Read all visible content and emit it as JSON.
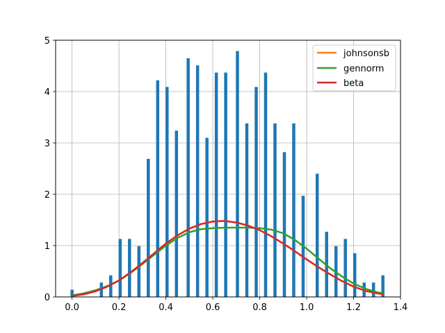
{
  "chart_data": {
    "type": "bar",
    "title": "",
    "xlabel": "",
    "ylabel": "",
    "xlim": [
      -0.07,
      1.4
    ],
    "ylim": [
      0,
      5
    ],
    "grid": true,
    "xticks": [
      0.0,
      0.2,
      0.4,
      0.6,
      0.8,
      1.0,
      1.2,
      1.4
    ],
    "xtick_labels": [
      "0.0",
      "0.2",
      "0.4",
      "0.6",
      "0.8",
      "1.0",
      "1.2",
      "1.4"
    ],
    "yticks": [
      0,
      1,
      2,
      3,
      4,
      5
    ],
    "ytick_labels": [
      "0",
      "1",
      "2",
      "3",
      "4",
      "5"
    ],
    "bar_color": "#1f77b4",
    "histogram": {
      "x": [
        0.0,
        0.125,
        0.165,
        0.205,
        0.245,
        0.285,
        0.325,
        0.365,
        0.405,
        0.445,
        0.495,
        0.535,
        0.575,
        0.615,
        0.655,
        0.705,
        0.745,
        0.785,
        0.825,
        0.865,
        0.905,
        0.945,
        0.985,
        1.045,
        1.085,
        1.125,
        1.165,
        1.205,
        1.245,
        1.285,
        1.325
      ],
      "values": [
        0.14,
        0.28,
        0.42,
        1.13,
        1.13,
        0.99,
        2.69,
        4.22,
        4.09,
        3.24,
        4.65,
        4.51,
        3.1,
        4.37,
        4.37,
        4.79,
        3.38,
        4.09,
        4.37,
        3.38,
        2.82,
        3.38,
        1.97,
        2.4,
        1.27,
        0.99,
        1.13,
        0.85,
        0.28,
        0.28,
        0.42
      ]
    },
    "series": [
      {
        "name": "johnsonsb",
        "color": "#ff7f0e",
        "x": [
          0.0,
          0.05,
          0.1,
          0.15,
          0.2,
          0.25,
          0.3,
          0.35,
          0.4,
          0.45,
          0.5,
          0.55,
          0.6,
          0.65,
          0.7,
          0.75,
          0.8,
          0.85,
          0.9,
          0.95,
          1.0,
          1.05,
          1.1,
          1.15,
          1.2,
          1.25,
          1.3,
          1.33
        ],
        "values": [
          0.02,
          0.05,
          0.11,
          0.2,
          0.32,
          0.48,
          0.66,
          0.85,
          1.04,
          1.2,
          1.33,
          1.42,
          1.47,
          1.48,
          1.45,
          1.39,
          1.3,
          1.18,
          1.04,
          0.89,
          0.73,
          0.58,
          0.44,
          0.31,
          0.2,
          0.12,
          0.07,
          0.05
        ]
      },
      {
        "name": "gennorm",
        "color": "#2ca02c",
        "x": [
          0.0,
          0.05,
          0.1,
          0.15,
          0.2,
          0.25,
          0.3,
          0.35,
          0.4,
          0.45,
          0.5,
          0.55,
          0.6,
          0.65,
          0.7,
          0.75,
          0.8,
          0.85,
          0.9,
          0.95,
          1.0,
          1.05,
          1.1,
          1.15,
          1.2,
          1.25,
          1.3,
          1.33
        ],
        "values": [
          0.03,
          0.07,
          0.13,
          0.21,
          0.32,
          0.47,
          0.64,
          0.82,
          1.0,
          1.15,
          1.26,
          1.32,
          1.34,
          1.35,
          1.35,
          1.35,
          1.34,
          1.31,
          1.24,
          1.11,
          0.94,
          0.75,
          0.56,
          0.4,
          0.26,
          0.16,
          0.09,
          0.07
        ]
      },
      {
        "name": "beta",
        "color": "#d62728",
        "x": [
          0.0,
          0.05,
          0.1,
          0.15,
          0.2,
          0.25,
          0.3,
          0.35,
          0.4,
          0.45,
          0.5,
          0.55,
          0.6,
          0.65,
          0.7,
          0.75,
          0.8,
          0.85,
          0.9,
          0.95,
          1.0,
          1.05,
          1.1,
          1.15,
          1.2,
          1.25,
          1.3,
          1.33
        ],
        "values": [
          0.02,
          0.05,
          0.11,
          0.2,
          0.32,
          0.48,
          0.66,
          0.85,
          1.04,
          1.2,
          1.33,
          1.42,
          1.47,
          1.48,
          1.45,
          1.39,
          1.3,
          1.18,
          1.04,
          0.89,
          0.73,
          0.58,
          0.44,
          0.31,
          0.2,
          0.12,
          0.07,
          0.05
        ]
      }
    ],
    "legend": {
      "placement": "top-right",
      "entries": [
        "johnsonsb",
        "gennorm",
        "beta"
      ]
    }
  }
}
